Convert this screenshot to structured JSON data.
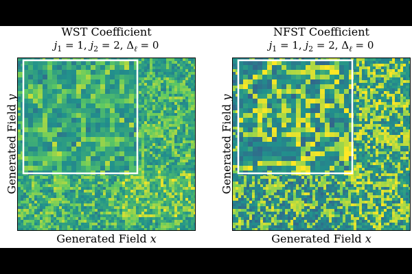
{
  "figure": {
    "background": "#ffffff",
    "letterbox": "#000000"
  },
  "chart_data": [
    {
      "type": "heatmap",
      "title": "WST Coefficient",
      "subtitle_parts": [
        "j",
        "1",
        " = 1, ",
        "j",
        "2",
        " = 2, Δ",
        "ℓ",
        " = 0"
      ],
      "subtitle_text": "j_1 = 1, j_2 = 2, Δ_ℓ = 0",
      "xlabel": "Generated Field x",
      "ylabel": "Generated Field y",
      "colormap": [
        "#440154",
        "#3b528b",
        "#21918c",
        "#5ec962",
        "#fde725"
      ],
      "inset": {
        "present": true,
        "border_color": "#ffffff",
        "zoom": "upper-left quadrant"
      },
      "xticks": [],
      "yticks": [],
      "texture": "cellular network (Voronoi-like), mostly teal with yellow-green cell edges",
      "seed": 7
    },
    {
      "type": "heatmap",
      "title": "NFST Coefficient",
      "subtitle_parts": [
        "j",
        "1",
        " = 1, ",
        "j",
        "2",
        " = 2, Δ",
        "ℓ",
        " = 0"
      ],
      "subtitle_text": "j_1 = 1, j_2 = 2, Δ_ℓ = 0",
      "xlabel": "Generated Field x",
      "ylabel": "Generated Field y",
      "colormap": [
        "#440154",
        "#3b528b",
        "#21918c",
        "#5ec962",
        "#fde725"
      ],
      "inset": {
        "present": true,
        "border_color": "#ffffff",
        "zoom": "upper-left quadrant"
      },
      "xticks": [],
      "yticks": [],
      "texture": "cellular network with bright yellow cell boundaries on teal-blue background",
      "seed": 19
    }
  ]
}
